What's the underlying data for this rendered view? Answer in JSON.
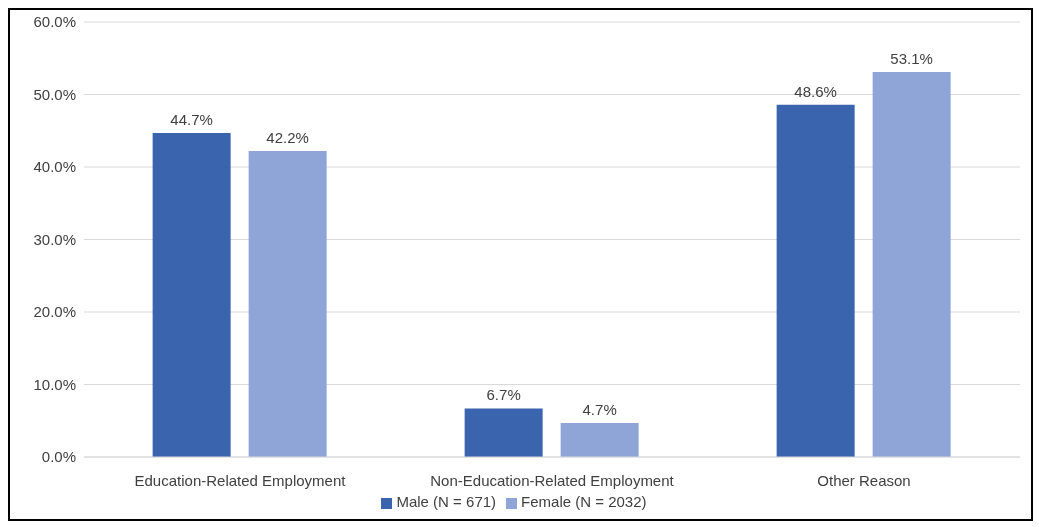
{
  "chart_data": {
    "type": "bar",
    "categories": [
      "Education-Related Employment",
      "Non-Education-Related Employment",
      "Other Reason"
    ],
    "series": [
      {
        "name": "Male (N = 671)",
        "color": "#3a64ad",
        "values": [
          44.7,
          6.7,
          48.6
        ],
        "value_labels": [
          "44.7%",
          "6.7%",
          "48.6%"
        ]
      },
      {
        "name": "Female (N = 2032)",
        "color": "#8fa5d7",
        "values": [
          42.2,
          4.7,
          53.1
        ],
        "value_labels": [
          "42.2%",
          "4.7%",
          "53.1%"
        ]
      }
    ],
    "ylim": [
      0,
      60
    ],
    "yticks": [
      {
        "value": 0,
        "label": "0.0%"
      },
      {
        "value": 10,
        "label": "10.0%"
      },
      {
        "value": 20,
        "label": "20.0%"
      },
      {
        "value": 30,
        "label": "30.0%"
      },
      {
        "value": 40,
        "label": "40.0%"
      },
      {
        "value": 50,
        "label": "50.0%"
      },
      {
        "value": 60,
        "label": "60.0%"
      }
    ],
    "grid": "y",
    "legend": "bottom"
  }
}
